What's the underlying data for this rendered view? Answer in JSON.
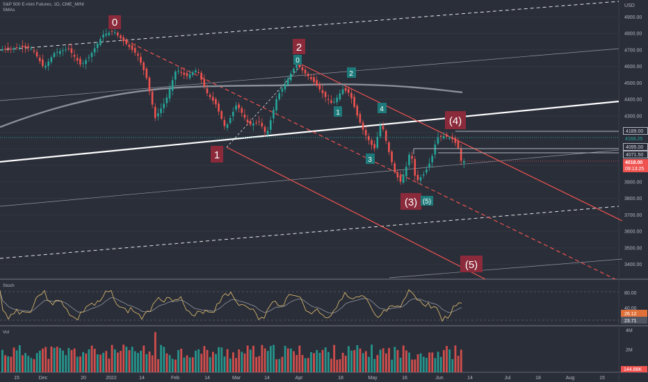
{
  "header": {
    "symbol_line": "S&P 500 E-mini Futures, 1D, CME_MINI",
    "indicator": "SMAs"
  },
  "price_axis": {
    "currency": "USD",
    "ticks": [
      "4900.00",
      "4800.00",
      "4700.00",
      "4600.00",
      "4500.00",
      "4400.00",
      "4300.00",
      "4200.00",
      "4100.00",
      "4000.00",
      "3900.00",
      "3800.00",
      "3700.00",
      "3600.00",
      "3500.00",
      "3400.00"
    ]
  },
  "price_labels": {
    "level_4189": "4189.00",
    "level_4168": "4168.25",
    "level_4095": "4095.00",
    "level_4071": "4071.50",
    "last_price": "4018.00",
    "countdown": "09:13:25"
  },
  "wave_labels": {
    "w0": "0",
    "w1": "1",
    "w2": "2",
    "w3": "(3)",
    "w4": "(4)",
    "w5": "(5)",
    "minor_0": "0",
    "minor_1": "1",
    "minor_2": "2",
    "minor_3": "3",
    "minor_4": "4",
    "minor_5": "(5)"
  },
  "stoch": {
    "label": "Stoch",
    "ticks": [
      "80.00",
      "40.00"
    ],
    "k_value": "26.12",
    "d_value": "23.71"
  },
  "volume": {
    "label": "Vol",
    "ticks": [
      "4M",
      "2M"
    ],
    "last_value": "144.88K"
  },
  "time_axis": {
    "ticks": [
      "15",
      "Dec",
      "20",
      "2022",
      "14",
      "Feb",
      "14",
      "Mar",
      "14",
      "Apr",
      "18",
      "May",
      "16",
      "Jun",
      "14",
      "Jul",
      "18",
      "Aug",
      "15"
    ]
  },
  "colors": {
    "background": "#2a2e39",
    "up": "#26a69a",
    "down": "#ef5350",
    "wave_box_red": "#8b2a3a",
    "wave_box_teal": "#1e7a7a",
    "trend_white": "#ffffff",
    "sma": "#8a8f99",
    "stoch_k": "#d4b36a",
    "stoch_d": "#9598a1"
  }
}
